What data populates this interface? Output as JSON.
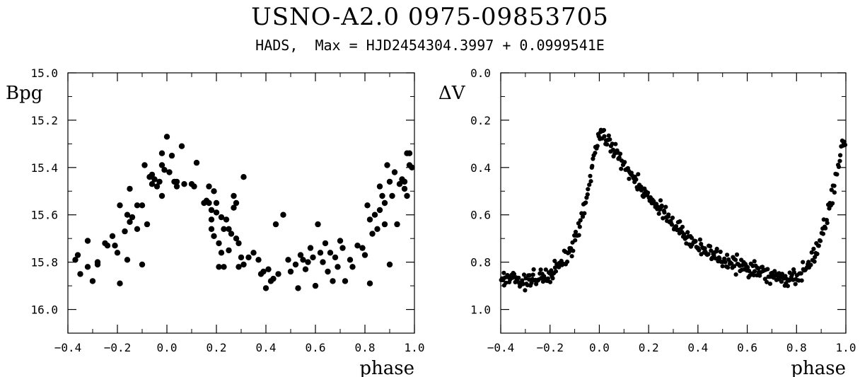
{
  "header": {
    "title": "USNO-A2.0  0975-09853705",
    "subtitle": "HADS,  Max = HJD2454304.3997 + 0.0999541E"
  },
  "chart_data": [
    {
      "type": "scatter",
      "xlabel": "phase",
      "ylabel": "Bpg",
      "xlim": [
        -0.4,
        1.0
      ],
      "ylim": [
        15.0,
        16.1
      ],
      "y_inverted": true,
      "x_ticks": [
        "−0.4",
        "−0.2",
        "0.0",
        "0.2",
        "0.4",
        "0.6",
        "0.8",
        "1.0"
      ],
      "x_tick_values": [
        -0.4,
        -0.2,
        0.0,
        0.2,
        0.4,
        0.6,
        0.8,
        1.0
      ],
      "y_ticks": [
        "15.0",
        "15.2",
        "15.4",
        "15.6",
        "15.8",
        "16.0"
      ],
      "y_tick_values": [
        15.0,
        15.2,
        15.4,
        15.6,
        15.8,
        16.0
      ],
      "points": [
        [
          -0.37,
          15.79
        ],
        [
          -0.36,
          15.77
        ],
        [
          -0.35,
          15.85
        ],
        [
          -0.32,
          15.71
        ],
        [
          -0.32,
          15.82
        ],
        [
          -0.3,
          15.88
        ],
        [
          -0.28,
          15.8
        ],
        [
          -0.28,
          15.81
        ],
        [
          -0.25,
          15.72
        ],
        [
          -0.24,
          15.73
        ],
        [
          -0.22,
          15.69
        ],
        [
          -0.21,
          15.73
        ],
        [
          -0.2,
          15.76
        ],
        [
          -0.19,
          15.56
        ],
        [
          -0.19,
          15.89
        ],
        [
          -0.17,
          15.67
        ],
        [
          -0.16,
          15.79
        ],
        [
          -0.16,
          15.6
        ],
        [
          -0.15,
          15.49
        ],
        [
          -0.15,
          15.63
        ],
        [
          -0.14,
          15.61
        ],
        [
          -0.12,
          15.56
        ],
        [
          -0.12,
          15.66
        ],
        [
          -0.1,
          15.56
        ],
        [
          -0.1,
          15.81
        ],
        [
          -0.09,
          15.39
        ],
        [
          -0.08,
          15.64
        ],
        [
          -0.06,
          15.43
        ],
        [
          -0.06,
          15.47
        ],
        [
          -0.05,
          15.45
        ],
        [
          -0.04,
          15.48
        ],
        [
          -0.03,
          15.46
        ],
        [
          -0.02,
          15.34
        ],
        [
          -0.02,
          15.39
        ],
        [
          -0.02,
          15.52
        ],
        [
          -0.01,
          15.41
        ],
        [
          0.0,
          15.27
        ],
        [
          0.01,
          15.42
        ],
        [
          0.02,
          15.35
        ],
        [
          0.03,
          15.46
        ],
        [
          0.04,
          15.48
        ],
        [
          0.06,
          15.31
        ],
        [
          0.07,
          15.47
        ],
        [
          0.1,
          15.47
        ],
        [
          0.11,
          15.48
        ],
        [
          0.12,
          15.38
        ],
        [
          0.16,
          15.54
        ],
        [
          0.17,
          15.55
        ],
        [
          0.17,
          15.48
        ],
        [
          0.18,
          15.58
        ],
        [
          0.18,
          15.62
        ],
        [
          0.18,
          15.66
        ],
        [
          0.19,
          15.5
        ],
        [
          0.19,
          15.69
        ],
        [
          0.2,
          15.55
        ],
        [
          0.2,
          15.59
        ],
        [
          0.21,
          15.72
        ],
        [
          0.22,
          15.61
        ],
        [
          0.22,
          15.76
        ],
        [
          0.23,
          15.66
        ],
        [
          0.23,
          15.82
        ],
        [
          0.24,
          15.62
        ],
        [
          0.25,
          15.66
        ],
        [
          0.25,
          15.75
        ],
        [
          0.26,
          15.68
        ],
        [
          0.27,
          15.52
        ],
        [
          0.27,
          15.57
        ],
        [
          0.28,
          15.55
        ],
        [
          0.28,
          15.7
        ],
        [
          0.29,
          15.82
        ],
        [
          0.3,
          15.78
        ],
        [
          0.31,
          15.44
        ],
        [
          0.31,
          15.81
        ],
        [
          0.33,
          15.78
        ],
        [
          0.35,
          15.76
        ],
        [
          0.37,
          15.79
        ],
        [
          0.38,
          15.85
        ],
        [
          0.39,
          15.84
        ],
        [
          0.4,
          15.91
        ],
        [
          0.41,
          15.83
        ],
        [
          0.42,
          15.88
        ],
        [
          0.43,
          15.87
        ],
        [
          0.44,
          15.64
        ],
        [
          0.45,
          15.85
        ],
        [
          0.47,
          15.6
        ],
        [
          0.49,
          15.79
        ],
        [
          0.5,
          15.84
        ],
        [
          0.52,
          15.81
        ],
        [
          0.53,
          15.91
        ],
        [
          0.54,
          15.77
        ],
        [
          0.55,
          15.79
        ],
        [
          0.56,
          15.83
        ],
        [
          0.57,
          15.8
        ],
        [
          0.58,
          15.74
        ],
        [
          0.59,
          15.78
        ],
        [
          0.6,
          15.9
        ],
        [
          0.61,
          15.64
        ],
        [
          0.62,
          15.76
        ],
        [
          0.63,
          15.8
        ],
        [
          0.64,
          15.72
        ],
        [
          0.65,
          15.84
        ],
        [
          0.66,
          15.76
        ],
        [
          0.67,
          15.88
        ],
        [
          0.68,
          15.78
        ],
        [
          0.69,
          15.82
        ],
        [
          0.7,
          15.71
        ],
        [
          0.71,
          15.74
        ],
        [
          0.72,
          15.88
        ],
        [
          0.74,
          15.79
        ],
        [
          0.75,
          15.82
        ],
        [
          0.77,
          15.73
        ],
        [
          0.79,
          15.74
        ],
        [
          0.8,
          15.77
        ],
        [
          0.81,
          15.56
        ],
        [
          0.82,
          15.89
        ],
        [
          0.82,
          15.62
        ],
        [
          0.83,
          15.68
        ],
        [
          0.84,
          15.6
        ],
        [
          0.85,
          15.66
        ],
        [
          0.86,
          15.58
        ],
        [
          0.86,
          15.48
        ],
        [
          0.87,
          15.52
        ],
        [
          0.88,
          15.64
        ],
        [
          0.88,
          15.55
        ],
        [
          0.89,
          15.39
        ],
        [
          0.9,
          15.81
        ],
        [
          0.9,
          15.46
        ],
        [
          0.91,
          15.52
        ],
        [
          0.92,
          15.42
        ],
        [
          0.93,
          15.64
        ],
        [
          0.94,
          15.47
        ],
        [
          0.95,
          15.45
        ],
        [
          0.96,
          15.49
        ],
        [
          0.96,
          15.46
        ],
        [
          0.97,
          15.52
        ],
        [
          0.98,
          15.34
        ],
        [
          0.98,
          15.39
        ],
        [
          0.99,
          15.4
        ],
        [
          0.97,
          15.34
        ],
        [
          0.29,
          15.72
        ],
        [
          0.21,
          15.82
        ],
        [
          0.04,
          15.46
        ],
        [
          -0.07,
          15.44
        ],
        [
          0.15,
          15.55
        ]
      ]
    },
    {
      "type": "scatter",
      "xlabel": "phase",
      "ylabel": "ΔV",
      "xlim": [
        -0.4,
        1.0
      ],
      "ylim": [
        0.0,
        1.1
      ],
      "y_inverted": true,
      "x_ticks": [
        "−0.4",
        "−0.2",
        "0.0",
        "0.2",
        "0.4",
        "0.6",
        "0.8",
        "1.0"
      ],
      "x_tick_values": [
        -0.4,
        -0.2,
        0.0,
        0.2,
        0.4,
        0.6,
        0.8,
        1.0
      ],
      "y_ticks": [
        "0.0",
        "0.2",
        "0.4",
        "0.6",
        "0.8",
        "1.0"
      ],
      "y_tick_values": [
        0.0,
        0.2,
        0.4,
        0.6,
        0.8,
        1.0
      ],
      "light_curve": {
        "phase": [
          -0.4,
          -0.3,
          -0.2,
          -0.15,
          -0.1,
          -0.07,
          -0.05,
          -0.03,
          -0.01,
          0.0,
          0.02,
          0.05,
          0.1,
          0.15,
          0.2,
          0.3,
          0.4,
          0.5,
          0.6,
          0.7,
          0.75,
          0.8,
          0.85,
          0.88,
          0.91,
          0.94,
          0.96,
          0.98,
          1.0
        ],
        "delta_v": [
          0.86,
          0.88,
          0.85,
          0.8,
          0.72,
          0.62,
          0.52,
          0.4,
          0.3,
          0.26,
          0.27,
          0.31,
          0.38,
          0.46,
          0.53,
          0.64,
          0.73,
          0.79,
          0.83,
          0.86,
          0.87,
          0.86,
          0.82,
          0.76,
          0.66,
          0.54,
          0.44,
          0.34,
          0.28
        ]
      },
      "point_count": 420,
      "scatter_amplitude": 0.035
    }
  ]
}
